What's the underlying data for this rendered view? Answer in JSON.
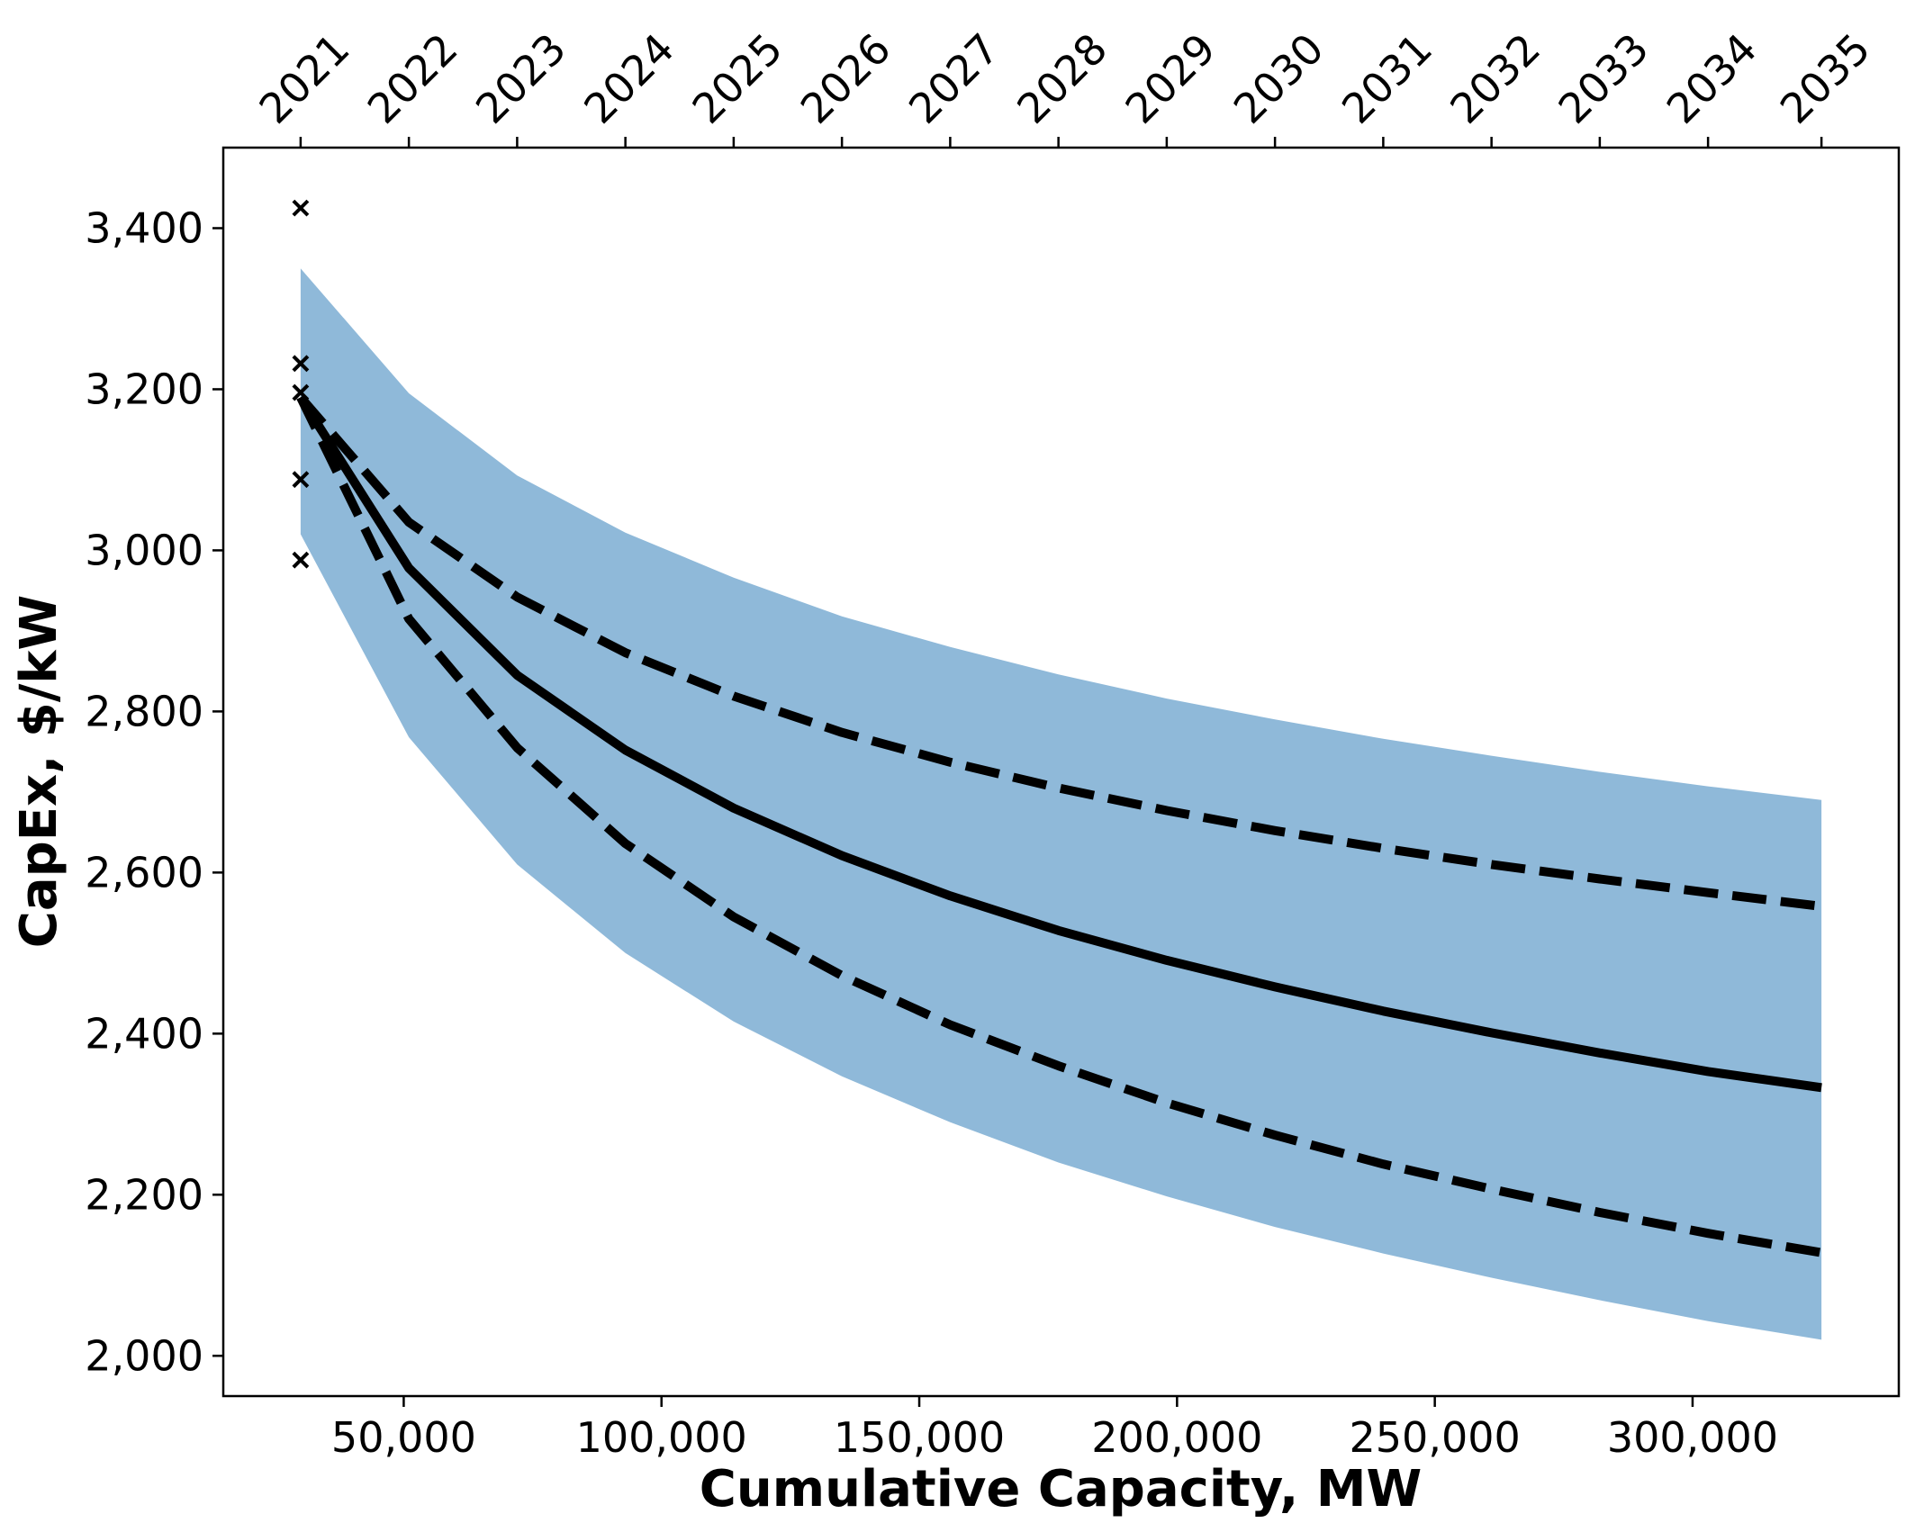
{
  "chart_data": {
    "type": "line",
    "xlabel": "Cumulative Capacity, MW",
    "ylabel": "CapEx, $/kW",
    "xlim": [
      15000,
      340000
    ],
    "ylim": [
      1950,
      3500
    ],
    "x_ticks": [
      50000,
      100000,
      150000,
      200000,
      250000,
      300000
    ],
    "x_tick_labels": [
      "50,000",
      "100,000",
      "150,000",
      "200,000",
      "250,000",
      "300,000"
    ],
    "y_ticks": [
      2000,
      2200,
      2400,
      2600,
      2800,
      3000,
      3200,
      3400
    ],
    "y_tick_labels": [
      "2,000",
      "2,200",
      "2,400",
      "2,600",
      "2,800",
      "3,000",
      "3,200",
      "3,400"
    ],
    "top_axis": {
      "x": [
        30000,
        51000,
        72000,
        93000,
        114000,
        135000,
        156000,
        177000,
        198000,
        219000,
        240000,
        261000,
        282000,
        303000,
        325000
      ],
      "labels": [
        "2021",
        "2022",
        "2023",
        "2024",
        "2025",
        "2026",
        "2027",
        "2028",
        "2029",
        "2030",
        "2031",
        "2032",
        "2033",
        "2034",
        "2035"
      ]
    },
    "x": [
      30000,
      51000,
      72000,
      93000,
      114000,
      135000,
      156000,
      177000,
      198000,
      219000,
      240000,
      261000,
      282000,
      303000,
      325000
    ],
    "band": {
      "color": "#8fb9d9",
      "upper": [
        3350,
        3195,
        3093,
        3022,
        2966,
        2918,
        2880,
        2846,
        2816,
        2790,
        2766,
        2745,
        2725,
        2707,
        2690
      ],
      "lower": [
        3020,
        2768,
        2610,
        2500,
        2415,
        2347,
        2290,
        2240,
        2198,
        2160,
        2127,
        2097,
        2069,
        2043,
        2020
      ]
    },
    "series": [
      {
        "style": "solid",
        "color": "#000000",
        "values": [
          3190,
          2978,
          2845,
          2752,
          2680,
          2621,
          2571,
          2528,
          2491,
          2458,
          2428,
          2401,
          2376,
          2353,
          2333
        ]
      },
      {
        "style": "dashed",
        "color": "#000000",
        "values": [
          3190,
          3035,
          2942,
          2873,
          2819,
          2774,
          2737,
          2705,
          2677,
          2652,
          2630,
          2610,
          2592,
          2575,
          2558
        ]
      },
      {
        "style": "dashed",
        "color": "#000000",
        "values": [
          3190,
          2915,
          2755,
          2636,
          2545,
          2472,
          2411,
          2360,
          2314,
          2274,
          2238,
          2207,
          2178,
          2152,
          2128
        ]
      }
    ],
    "markers": {
      "marker": "x",
      "color": "#000000",
      "x": [
        30000,
        30000,
        30000,
        30000,
        30000
      ],
      "y": [
        3425,
        3232,
        3196,
        3088,
        2988
      ]
    },
    "grid": false,
    "legend": null
  }
}
